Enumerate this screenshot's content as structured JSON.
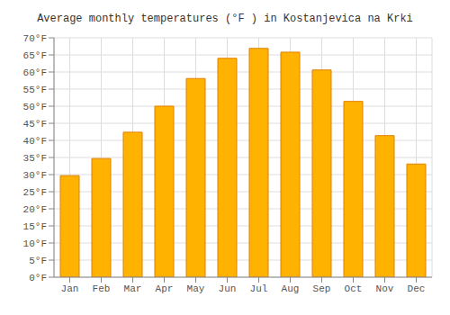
{
  "chart_data": {
    "type": "bar",
    "title": "Average monthly temperatures (°F ) in Kostanjevica na Krki",
    "categories": [
      "Jan",
      "Feb",
      "Mar",
      "Apr",
      "May",
      "Jun",
      "Jul",
      "Aug",
      "Sep",
      "Oct",
      "Nov",
      "Dec"
    ],
    "values": [
      29.7,
      34.7,
      42.4,
      50.0,
      58.1,
      64.0,
      66.9,
      65.8,
      60.6,
      51.4,
      41.4,
      33.1
    ],
    "color": "#FFB300",
    "ylim": [
      0,
      70
    ],
    "yticks": [
      {
        "value": 0,
        "label": "0°F"
      },
      {
        "value": 5,
        "label": "5°F"
      },
      {
        "value": 10,
        "label": "10°F"
      },
      {
        "value": 15,
        "label": "15°F"
      },
      {
        "value": 20,
        "label": "20°F"
      },
      {
        "value": 25,
        "label": "25°F"
      },
      {
        "value": 30,
        "label": "30°F"
      },
      {
        "value": 35,
        "label": "35°F"
      },
      {
        "value": 40,
        "label": "40°F"
      },
      {
        "value": 45,
        "label": "45°F"
      },
      {
        "value": 50,
        "label": "50°F"
      },
      {
        "value": 55,
        "label": "55°F"
      },
      {
        "value": 60,
        "label": "60°F"
      },
      {
        "value": 65,
        "label": "65°F"
      },
      {
        "value": 70,
        "label": "70°F"
      }
    ],
    "grid": true
  }
}
